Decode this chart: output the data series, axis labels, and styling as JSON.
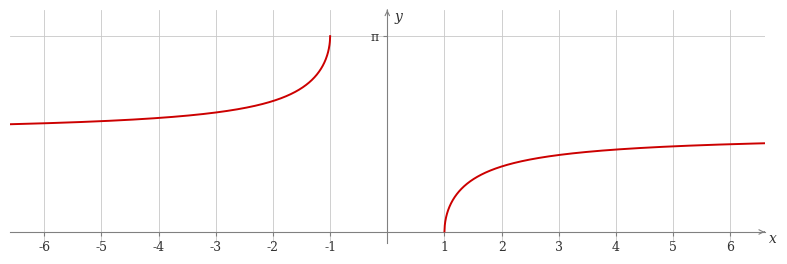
{
  "xlim": [
    -6.6,
    6.6
  ],
  "ylim": [
    -0.18,
    3.55
  ],
  "xticks": [
    -6,
    -5,
    -4,
    -3,
    -2,
    -1,
    1,
    2,
    3,
    4,
    5,
    6
  ],
  "ytick_pi_value": 3.14159265358979,
  "curve_color": "#cc0000",
  "curve_linewidth": 1.4,
  "grid_color": "#c8c8c8",
  "axis_color": "#808080",
  "background_color": "#ffffff",
  "pi_label": "π",
  "ylabel": "y",
  "xlabel": "x",
  "tick_fontsize": 9,
  "label_fontsize": 10
}
